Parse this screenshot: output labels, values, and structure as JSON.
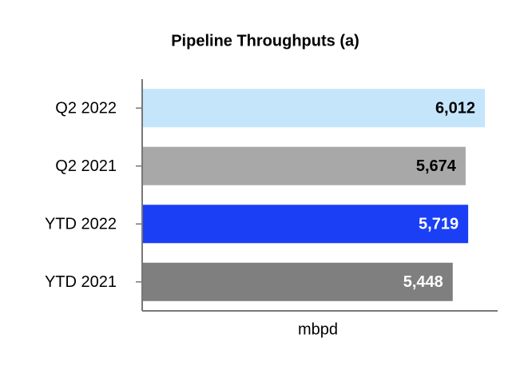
{
  "chart_data": {
    "type": "hbar",
    "title": "Pipeline Throughputs (a)",
    "x_label": "mbpd",
    "categories": [
      "Q2 2022",
      "Q2 2021",
      "YTD 2022",
      "YTD 2021"
    ],
    "values": [
      6012,
      5674,
      5719,
      5448
    ],
    "value_labels": [
      "6,012",
      "5,674",
      "5,719",
      "5,448"
    ],
    "colors": [
      "#c5e5fb",
      "#a8a8a8",
      "#1a3ff5",
      "#7f7f7f"
    ],
    "xlim": [
      0,
      6236
    ]
  }
}
